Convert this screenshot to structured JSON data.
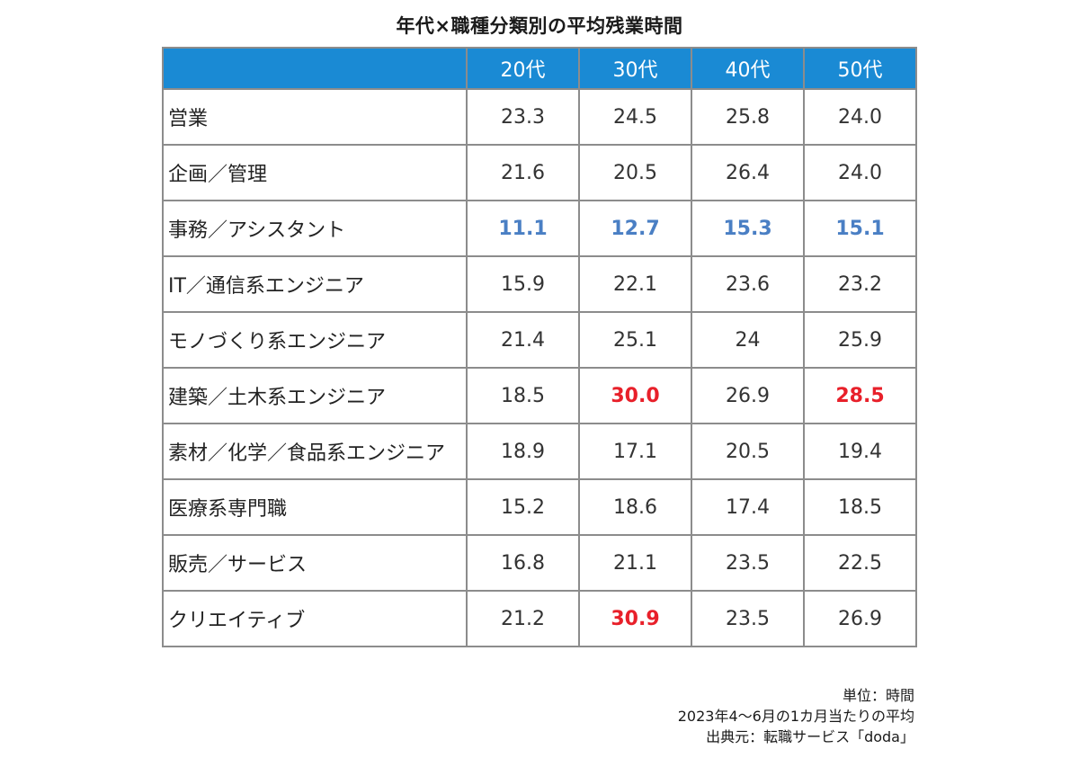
{
  "chart_data": {
    "type": "table",
    "title": "年代×職種分類別の平均残業時間",
    "columns": [
      "",
      "20代",
      "30代",
      "40代",
      "50代"
    ],
    "rows": [
      {
        "category": "営業",
        "values": [
          "23.3",
          "24.5",
          "25.8",
          "24.0"
        ],
        "highlight": [
          "",
          "",
          "",
          ""
        ]
      },
      {
        "category": "企画／管理",
        "values": [
          "21.6",
          "20.5",
          "26.4",
          "24.0"
        ],
        "highlight": [
          "",
          "",
          "",
          ""
        ]
      },
      {
        "category": "事務／アシスタント",
        "values": [
          "11.1",
          "12.7",
          "15.3",
          "15.1"
        ],
        "highlight": [
          "low",
          "low",
          "low",
          "low"
        ]
      },
      {
        "category": "IT／通信系エンジニア",
        "values": [
          "15.9",
          "22.1",
          "23.6",
          "23.2"
        ],
        "highlight": [
          "",
          "",
          "",
          ""
        ]
      },
      {
        "category": "モノづくり系エンジニア",
        "values": [
          "21.4",
          "25.1",
          "24",
          "25.9"
        ],
        "highlight": [
          "",
          "",
          "",
          ""
        ]
      },
      {
        "category": "建築／土木系エンジニア",
        "values": [
          "18.5",
          "30.0",
          "26.9",
          "28.5"
        ],
        "highlight": [
          "",
          "high",
          "",
          "high"
        ]
      },
      {
        "category": "素材／化学／食品系エンジニア",
        "values": [
          "18.9",
          "17.1",
          "20.5",
          "19.4"
        ],
        "highlight": [
          "",
          "",
          "",
          ""
        ]
      },
      {
        "category": "医療系専門職",
        "values": [
          "15.2",
          "18.6",
          "17.4",
          "18.5"
        ],
        "highlight": [
          "",
          "",
          "",
          ""
        ]
      },
      {
        "category": "販売／サービス",
        "values": [
          "16.8",
          "21.1",
          "23.5",
          "22.5"
        ],
        "highlight": [
          "",
          "",
          "",
          ""
        ]
      },
      {
        "category": "クリエイティブ",
        "values": [
          "21.2",
          "30.9",
          "23.5",
          "26.9"
        ],
        "highlight": [
          "",
          "high",
          "",
          ""
        ]
      }
    ]
  },
  "notes": {
    "unit": "単位：時間",
    "period": "2023年4～6月の1カ月当たりの平均",
    "source": "出典元：転職サービス「doda」"
  },
  "colors": {
    "header_bg": "#1a8ad4",
    "header_text": "#ffffff",
    "low_highlight": "#4a7fc4",
    "high_highlight": "#e8202a",
    "border": "#8c8c8c"
  }
}
